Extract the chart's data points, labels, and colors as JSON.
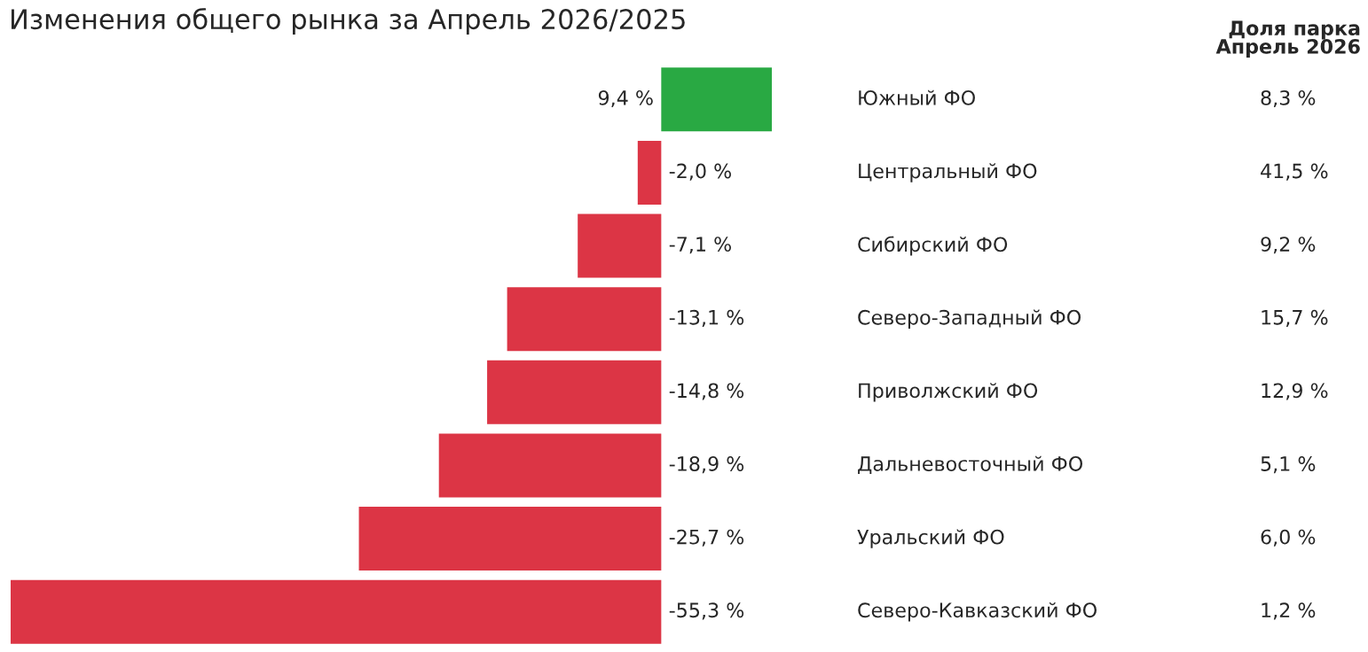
{
  "chart_data": [
    {
      "type": "bar",
      "orientation": "horizontal",
      "title": "Изменения общего рынка за Апрель 2026/2025",
      "categories": [
        "Южный ФО",
        "Центральный ФО",
        "Сибирский ФО",
        "Северо-Западный ФО",
        "Приволжский ФО",
        "Дальневосточный ФО",
        "Уральский ФО",
        "Северо-Кавказский ФО"
      ],
      "values": [
        9.4,
        -2.0,
        -7.1,
        -13.1,
        -14.8,
        -18.9,
        -25.7,
        -55.3
      ],
      "value_labels": [
        "9,4 %",
        "-2,0 %",
        "-7,1 %",
        "-13,1 %",
        "-14,8 %",
        "-18,9 %",
        "-25,7 %",
        "-55,3 %"
      ],
      "colors": [
        "#29a943",
        "#dc3545",
        "#dc3545",
        "#dc3545",
        "#dc3545",
        "#dc3545",
        "#dc3545",
        "#dc3545"
      ],
      "tick_labels": "y"
    },
    {
      "type": "other",
      "title": "Доля парка\nАпрель 2026",
      "annotations": [
        "8,3 %",
        "41,5 %",
        "9,2 %",
        "15,7 %",
        "12,9 %",
        "5,1 %",
        "6,0 %",
        "1,2 %"
      ]
    }
  ]
}
